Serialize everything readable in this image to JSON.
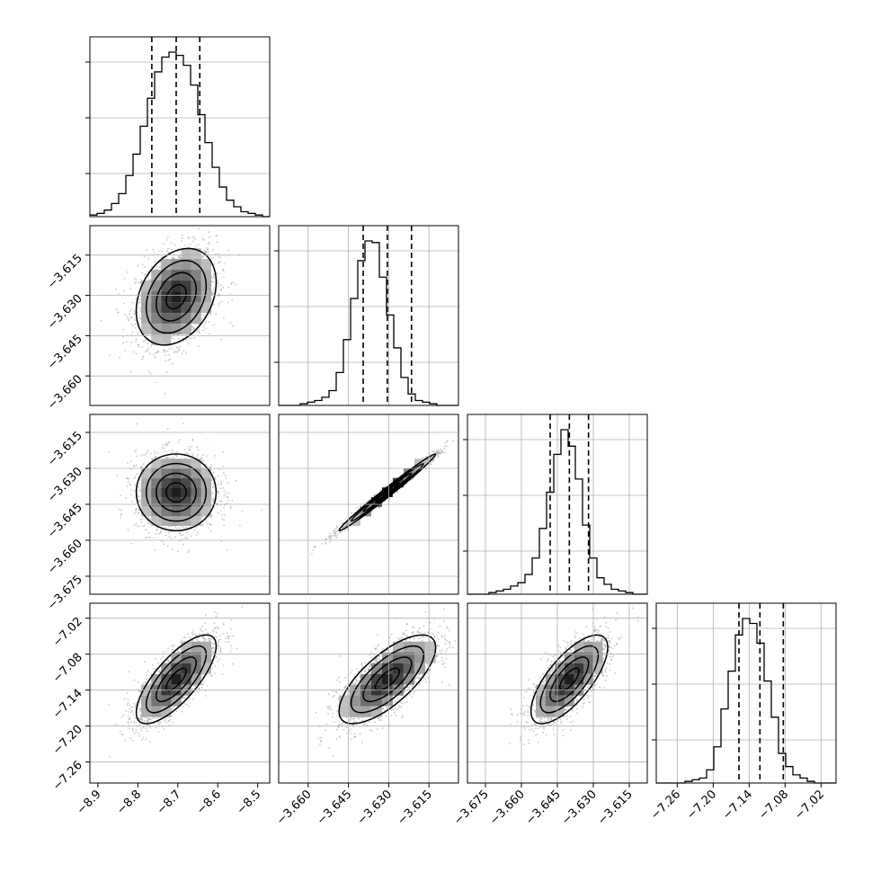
{
  "chart_data": {
    "type": "corner",
    "variables": [
      {
        "id": "p0",
        "range": [
          -8.92,
          -8.47
        ],
        "ticks": [
          -8.9,
          -8.8,
          -8.7,
          -8.6,
          -8.5
        ],
        "tick_labels": [
          "−8.9",
          "−8.8",
          "−8.7",
          "−8.6",
          "−8.5"
        ],
        "quantiles": [
          -8.765,
          -8.704,
          -8.645
        ],
        "mean": -8.704,
        "sd": 0.05
      },
      {
        "id": "p1",
        "range": [
          -3.671,
          -3.604
        ],
        "ticks": [
          -3.66,
          -3.645,
          -3.63,
          -3.615
        ],
        "tick_labels": [
          "−3.660",
          "−3.645",
          "−3.630",
          "−3.615"
        ],
        "quantiles": [
          -3.6395,
          -3.6305,
          -3.6215
        ],
        "mean": -3.6305,
        "sd": 0.009
      },
      {
        "id": "p2",
        "range": [
          -3.6825,
          -3.6075
        ],
        "ticks": [
          -3.675,
          -3.66,
          -3.645,
          -3.63,
          -3.615
        ],
        "tick_labels": [
          "−3.675",
          "−3.660",
          "−3.645",
          "−3.630",
          "−3.615"
        ],
        "quantiles": [
          -3.648,
          -3.64,
          -3.632
        ],
        "mean": -3.64,
        "sd": 0.008
      },
      {
        "id": "p3",
        "range": [
          -7.295,
          -6.995
        ],
        "ticks": [
          -7.26,
          -7.2,
          -7.14,
          -7.08,
          -7.02
        ],
        "tick_labels": [
          "−7.26",
          "−7.20",
          "−7.14",
          "−7.08",
          "−7.02"
        ],
        "quantiles": [
          -7.157,
          -7.122,
          -7.083
        ],
        "mean": -7.122,
        "sd": 0.037
      }
    ],
    "histograms": [
      {
        "var": "p0",
        "edges": [
          -8.92,
          -8.47
        ],
        "counts": [
          1,
          2,
          4,
          8,
          14,
          25,
          38,
          55,
          72,
          88,
          97,
          100,
          98,
          92,
          80,
          62,
          45,
          30,
          18,
          10,
          6,
          3,
          2,
          1,
          0
        ]
      },
      {
        "var": "p1",
        "edges": [
          -3.671,
          -3.604
        ],
        "counts": [
          0,
          0,
          0,
          1,
          2,
          3,
          5,
          9,
          20,
          40,
          65,
          88,
          100,
          99,
          78,
          55,
          35,
          17,
          7,
          3,
          2,
          1,
          0,
          0,
          0
        ]
      },
      {
        "var": "p2",
        "edges": [
          -3.6825,
          -3.6075
        ],
        "counts": [
          0,
          0,
          0,
          1,
          2,
          3,
          5,
          7,
          12,
          22,
          40,
          62,
          85,
          100,
          90,
          70,
          42,
          22,
          10,
          6,
          3,
          2,
          1,
          0,
          0
        ]
      },
      {
        "var": "p3",
        "edges": [
          -7.295,
          -6.995
        ],
        "counts": [
          0,
          0,
          0,
          0,
          1,
          2,
          3,
          8,
          22,
          45,
          68,
          90,
          100,
          97,
          85,
          62,
          40,
          18,
          10,
          5,
          3,
          1,
          0,
          0,
          0
        ]
      }
    ],
    "pairs": [
      {
        "x": "p0",
        "y": "p1",
        "correlation": 0.3
      },
      {
        "x": "p0",
        "y": "p2",
        "correlation": 0.0
      },
      {
        "x": "p1",
        "y": "p2",
        "correlation": 0.99
      },
      {
        "x": "p0",
        "y": "p3",
        "correlation": 0.75
      },
      {
        "x": "p1",
        "y": "p3",
        "correlation": 0.72
      },
      {
        "x": "p2",
        "y": "p3",
        "correlation": 0.72
      }
    ],
    "contour_levels_sigma": [
      0.5,
      1.0,
      1.5,
      2.0
    ],
    "grid": true,
    "quantile_line_style": "dashed",
    "colors": {
      "ink": "#000000",
      "grid": "#b0b0b0",
      "points": "#9a9a9a"
    }
  }
}
